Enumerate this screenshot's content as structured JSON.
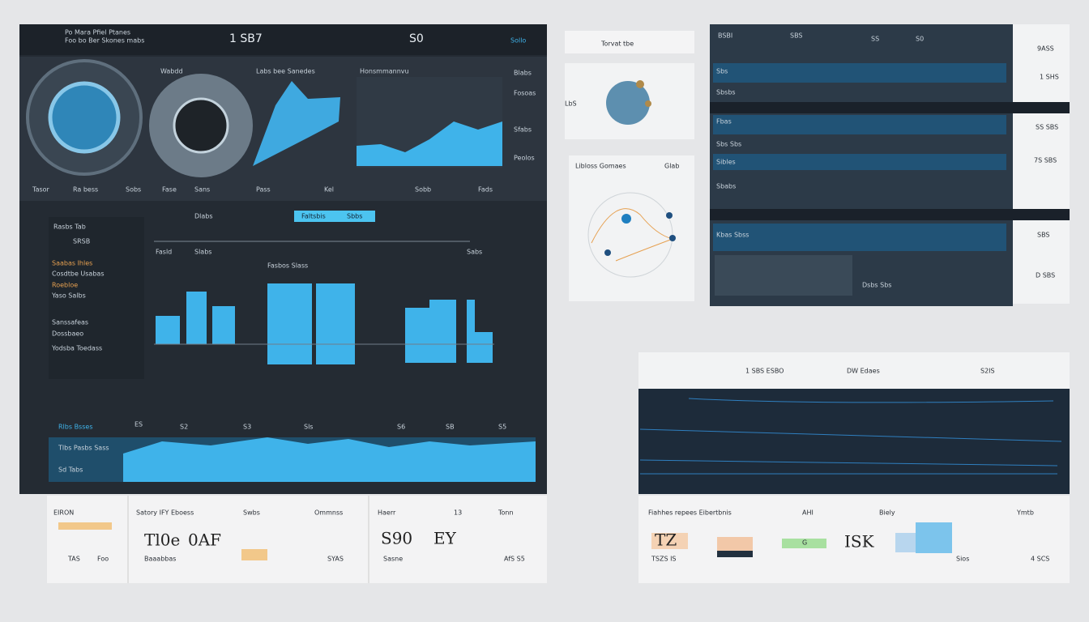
{
  "main": {
    "title_lines": [
      "Po Mara Pfiel Ptanes",
      "Foo bo Ber Skones mabs"
    ],
    "headline": "1 SB7",
    "badge": "S0",
    "brand": "Sollo",
    "gauge_labels": [
      "Wabdd",
      "Labs bee Sanedes",
      "Honsmmannvu"
    ],
    "side_labels": [
      "Blabs",
      "Fosoas",
      "Sfabs",
      "Peolos"
    ],
    "caption_row": [
      "Tasor",
      "Ra bess",
      "Sobs",
      "Fase",
      "Sans",
      "Pass",
      "Kel",
      "Sobb",
      "Fads"
    ],
    "section_title": "Dlabs",
    "search_label": "Faltsbis",
    "search_value": "Sbbs",
    "menu": [
      "Rasbs Tab",
      "SRSB",
      "Saabas Ihles",
      "Cosdtbe Usabas",
      "Roebloe",
      "Yaso Salbs",
      "Sanssafeas",
      "Dossbaeo",
      "Yodsba Toedass"
    ],
    "chart_labels": [
      "Fasld",
      "Slabs",
      "Fasbos Slass",
      "Sabs"
    ],
    "strip_labels": [
      "Rlbs Bsses",
      "Tlbs Pasbs Sass",
      "Sd Tabs"
    ],
    "strip_ticks": [
      "ES",
      "S2",
      "S3",
      "Sls",
      "S6",
      "SB",
      "S5"
    ]
  },
  "summary": {
    "headers": [
      "EIRON",
      "Satory IFY Eboess",
      "Swbs",
      "Ommnss",
      "Haerr",
      "13",
      "Tonn"
    ],
    "values": [
      "Tl0e",
      "0AF",
      "S90",
      "EY"
    ],
    "notes": [
      "TAS",
      "Foo",
      "Baaabbas",
      "Sasne",
      "SYAS",
      "AfS S5"
    ]
  },
  "cards": {
    "title": "Torvat tbe",
    "sphere_label": "LbS",
    "diagram_title": "Libloss Gomaes",
    "diagram_tag": "Glab"
  },
  "table": {
    "header": [
      "BSBI",
      "SBS",
      "SS",
      "S0"
    ],
    "rows": [
      "Sbs",
      "Sbsbs",
      "Fbas",
      "Sbs Sbs",
      "Sibles",
      "Sbabs",
      "Kbas Sbss",
      "Dsbs Sbs"
    ],
    "side_values": [
      "9ASS",
      "1 SHS",
      "SS SBS",
      "7S SBS",
      "SBS",
      "D SBS"
    ]
  },
  "monitor": {
    "header": [
      "1 SBS ESBO",
      "DW Edaes",
      "S2IS"
    ],
    "footer_headers": [
      "Fiahhes repees Eibertbnis",
      "AHI",
      "Biely",
      "Ymtb"
    ],
    "footer_values": [
      "TZ",
      "TSZS IS",
      "G",
      "ISK",
      "Sios",
      "4 SCS"
    ]
  }
}
